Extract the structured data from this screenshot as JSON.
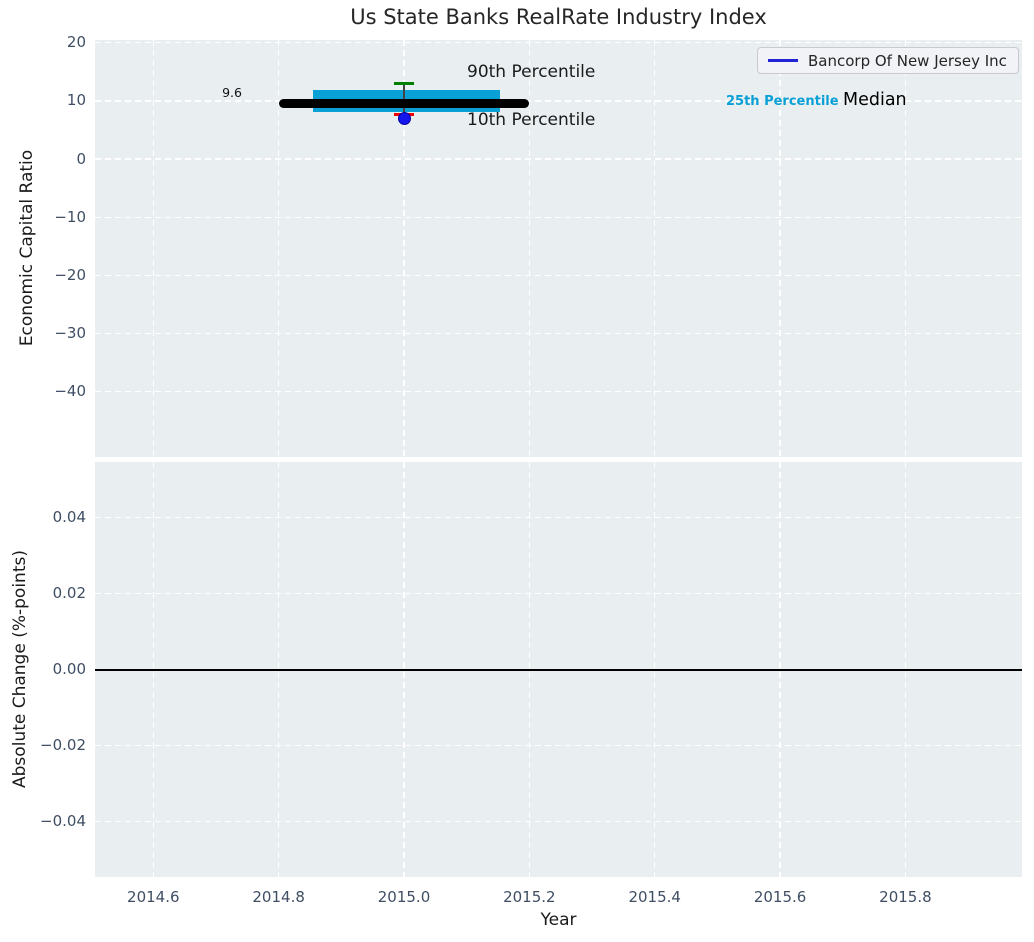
{
  "title": "Us State Banks RealRate Industry Index",
  "legend": {
    "entries": [
      {
        "label": "Bancorp Of New Jersey Inc",
        "color": "#2222d6"
      }
    ]
  },
  "annotations": {
    "median_value_label": "9.6",
    "p90_label": "90th Percentile",
    "p10_label": "10th Percentile",
    "p25_label": "25th Percentile",
    "median_label": "Median"
  },
  "colors": {
    "figure_background": "#ffffff",
    "axes_background": "#e9eef1",
    "grid": "#ffffff",
    "tick_label": "#3f4e63",
    "text": "#262626",
    "median_line": "#000000",
    "percentile_band": "#09a0d5",
    "p90_cap": "#008000",
    "p10_cap": "#ee0000",
    "company_marker": "#1515ee",
    "company_marker_edge": "#0000a0",
    "whisker": "#444444",
    "zero_line": "#000000"
  },
  "chart_data": {
    "type": "line",
    "title": "Us State Banks RealRate Industry Index",
    "xlabel": "Year",
    "xlim": [
      2014.507,
      2015.986
    ],
    "xticks": [
      2014.6,
      2014.8,
      2015.0,
      2015.2,
      2015.4,
      2015.6,
      2015.8
    ],
    "xtick_labels": [
      "2014.6",
      "2014.8",
      "2015.0",
      "2015.2",
      "2015.4",
      "2015.6",
      "2015.8"
    ],
    "grid": "white dashed gridlines on light gray background",
    "legend_position": "upper right",
    "subplots": [
      {
        "ylabel": "Economic Capital Ratio",
        "ylim": [
          -51.2,
          20.46
        ],
        "yticks": [
          20,
          10,
          0,
          -10,
          -20,
          -30,
          -40
        ],
        "ytick_labels": [
          "20",
          "10",
          "0",
          "−10",
          "−20",
          "−30",
          "−40"
        ],
        "industry_index": {
          "year": 2015.0,
          "median": 9.6,
          "median_span_x": [
            2014.8,
            2015.2
          ],
          "p25": 8.0,
          "p75": 11.9,
          "band_span_x": [
            2014.855,
            2015.153
          ],
          "p90": 12.9,
          "p10": 7.7,
          "whisker_x": 2015.0,
          "cap_halfwidth_x": 0.016
        },
        "company_point": {
          "name": "Bancorp Of New Jersey Inc",
          "x": 2015.0,
          "y": 7.0
        }
      },
      {
        "ylabel": "Absolute Change (%-points)",
        "ylim": [
          -0.0547,
          0.0547
        ],
        "yticks": [
          0.04,
          0.02,
          0.0,
          -0.02,
          -0.04
        ],
        "ytick_labels": [
          "0.04",
          "0.02",
          "0.00",
          "−0.02",
          "−0.04"
        ],
        "zero_line_y": 0.0
      }
    ]
  }
}
